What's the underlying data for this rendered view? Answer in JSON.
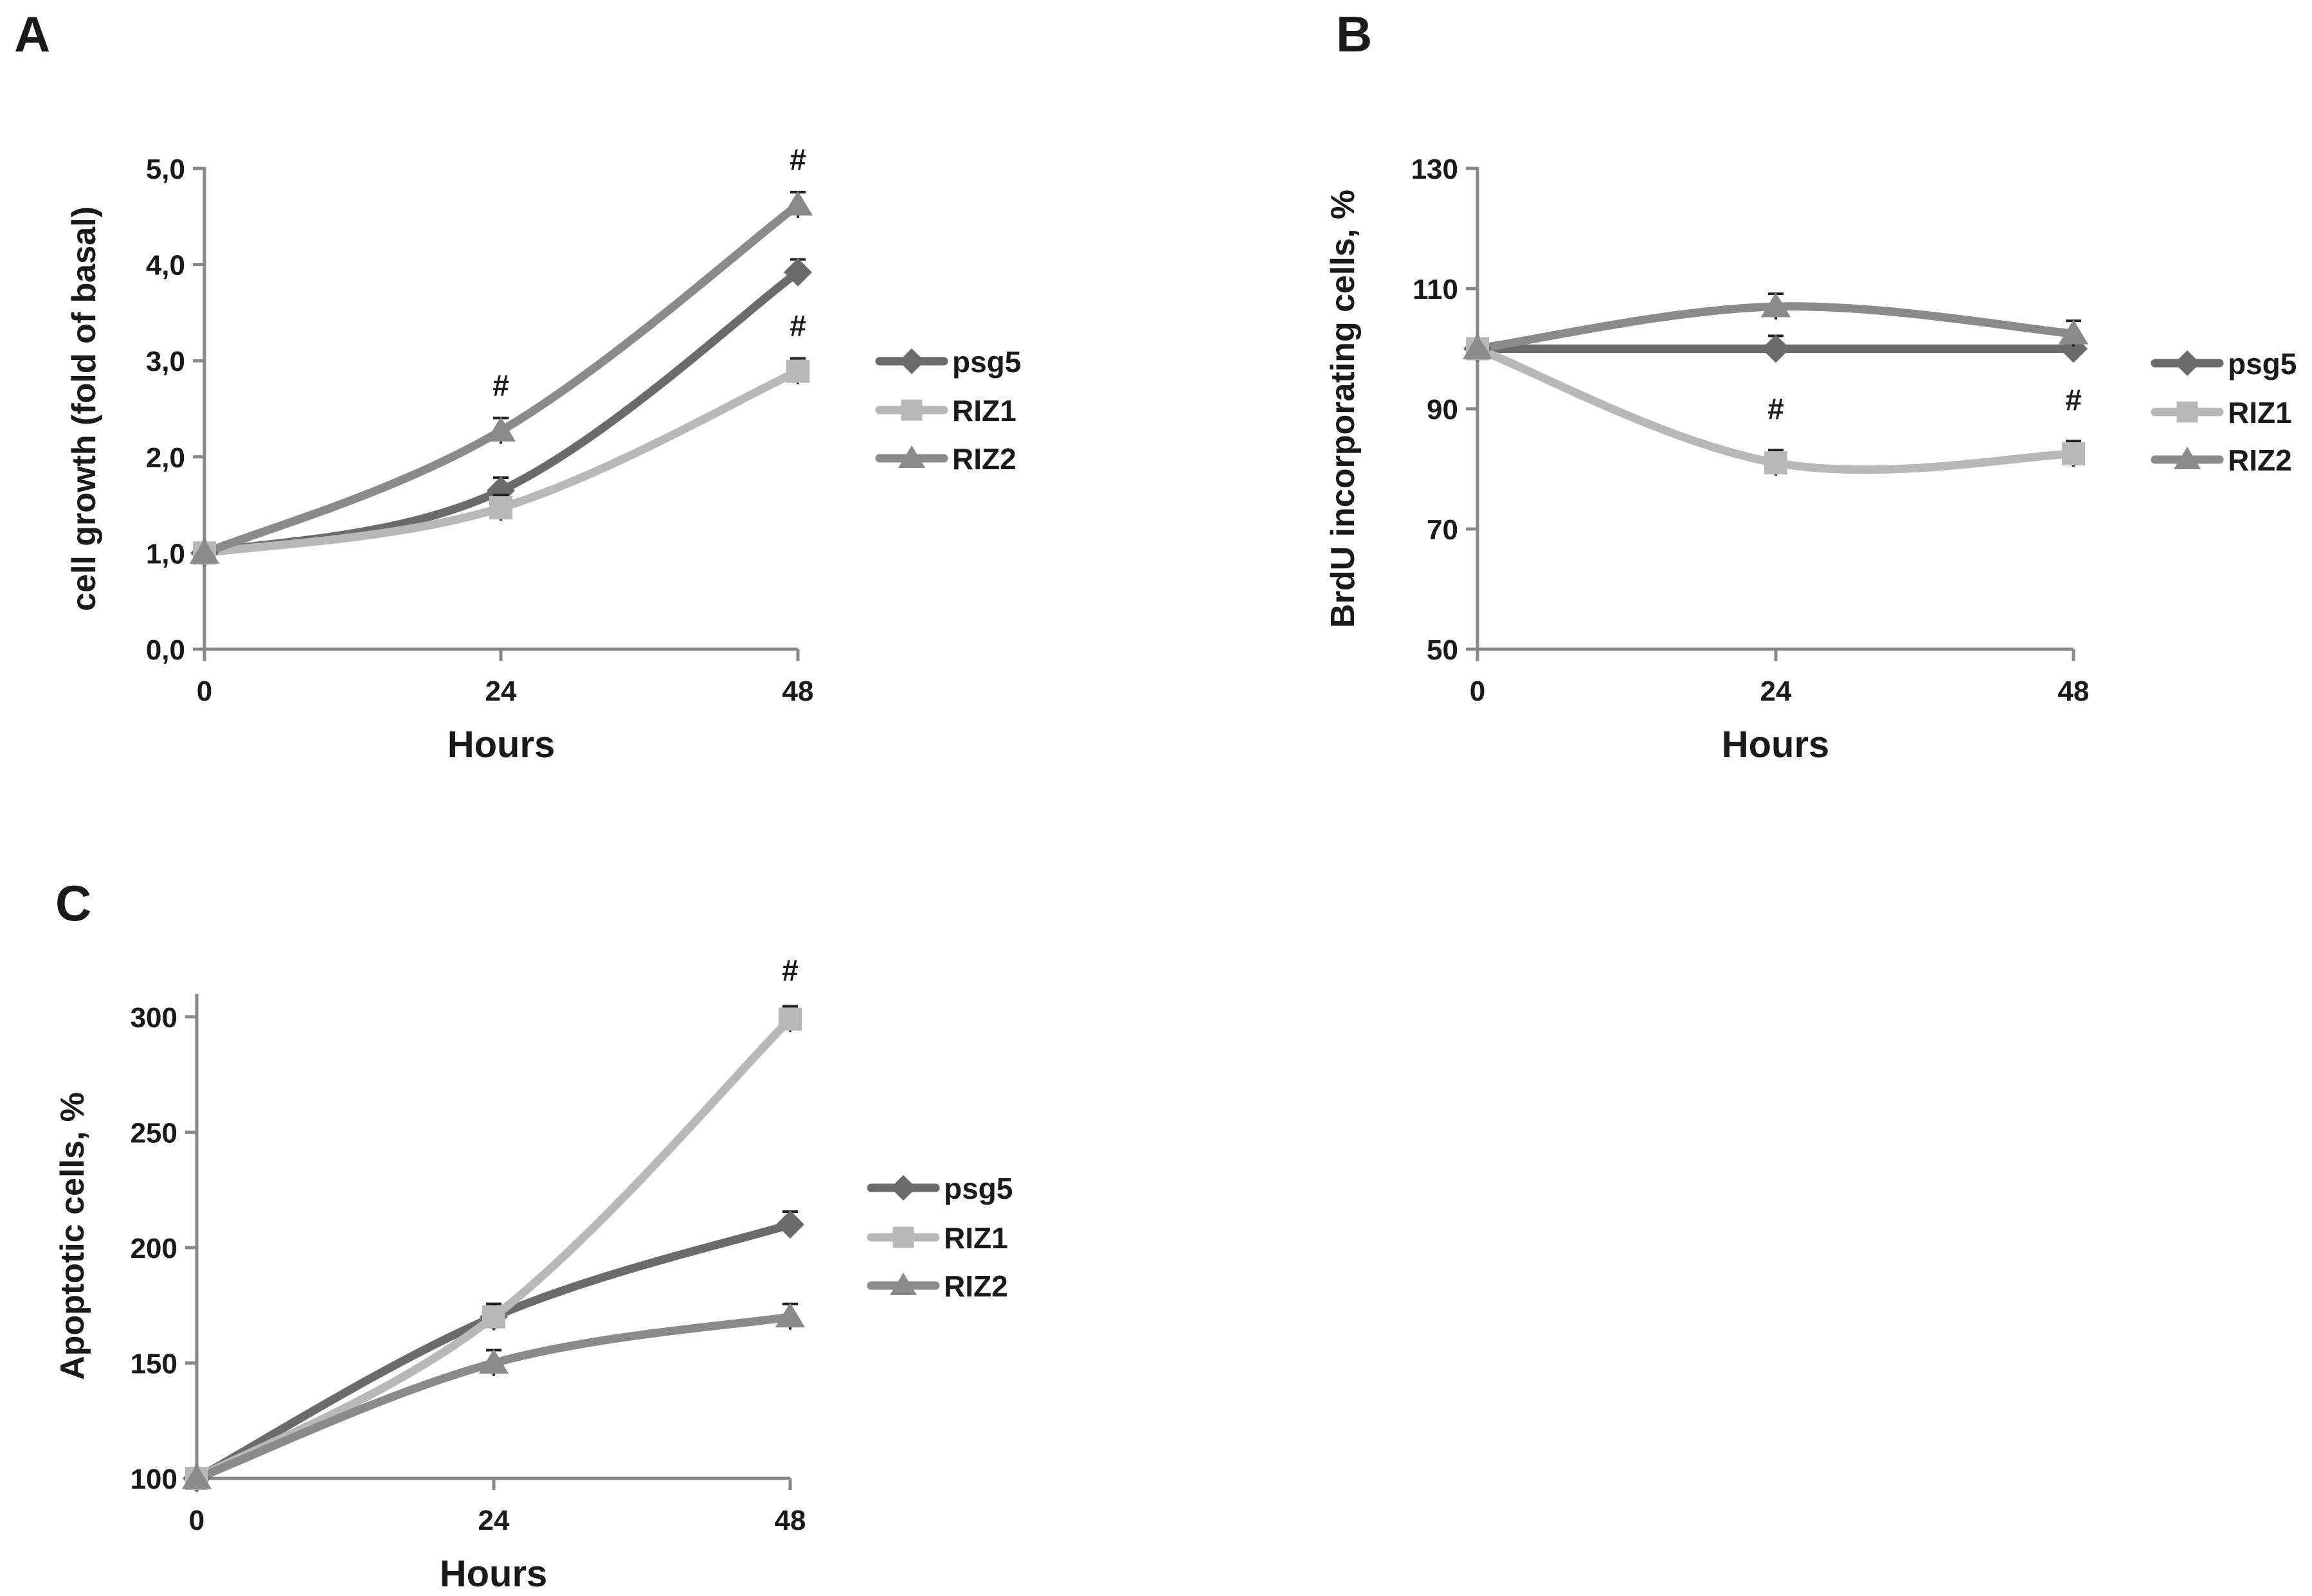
{
  "figure": {
    "panels": [
      "A",
      "B",
      "C"
    ]
  },
  "chart_data": [
    {
      "panel": "A",
      "type": "line",
      "xlabel": "Hours",
      "ylabel": "cell growth (fold of basal)",
      "categories": [
        "0",
        "24",
        "48"
      ],
      "ylim": [
        0,
        5
      ],
      "yticks": [
        0,
        1,
        2,
        3,
        4,
        5
      ],
      "ytick_labels": [
        "0,0",
        "1,0",
        "2,0",
        "3,0",
        "4,0",
        "5,0"
      ],
      "series": [
        {
          "name": "psg5",
          "color": "#6b6b6b",
          "marker": "diamond",
          "values": [
            1.0,
            1.65,
            3.92
          ],
          "errors": [
            0,
            0.08,
            0.08
          ]
        },
        {
          "name": "RIZ1",
          "color": "#b8b8b8",
          "marker": "square",
          "values": [
            1.0,
            1.47,
            2.89
          ],
          "errors": [
            0,
            0.05,
            0.06
          ]
        },
        {
          "name": "RIZ2",
          "color": "#8a8a8a",
          "marker": "triangle",
          "values": [
            1.0,
            2.27,
            4.62
          ],
          "errors": [
            0,
            0.09,
            0.1
          ]
        }
      ],
      "annotations": [
        {
          "text": "#",
          "x": "24",
          "y": 2.27
        },
        {
          "text": "#",
          "x": "48",
          "y": 4.62
        },
        {
          "text": "#",
          "x": "48",
          "y": 2.89
        }
      ],
      "legend": "right"
    },
    {
      "panel": "B",
      "type": "line",
      "xlabel": "Hours",
      "ylabel": "BrdU incorporating cells, %",
      "categories": [
        "0",
        "24",
        "48"
      ],
      "ylim": [
        50,
        130
      ],
      "yticks": [
        50,
        70,
        90,
        110,
        130
      ],
      "ytick_labels": [
        "50",
        "70",
        "90",
        "110",
        "130"
      ],
      "series": [
        {
          "name": "psg5",
          "color": "#6b6b6b",
          "marker": "diamond",
          "values": [
            100,
            100,
            100
          ],
          "errors": [
            0,
            0.5,
            0.5
          ]
        },
        {
          "name": "RIZ1",
          "color": "#b8b8b8",
          "marker": "square",
          "values": [
            100,
            81,
            82.5
          ],
          "errors": [
            0,
            1,
            1
          ]
        },
        {
          "name": "RIZ2",
          "color": "#8a8a8a",
          "marker": "triangle",
          "values": [
            100,
            107,
            102.5
          ],
          "errors": [
            0,
            1,
            1
          ]
        }
      ],
      "annotations": [
        {
          "text": "#",
          "x": "24",
          "y": 81
        },
        {
          "text": "#",
          "x": "48",
          "y": 82.5
        }
      ],
      "legend": "right"
    },
    {
      "panel": "C",
      "type": "line",
      "xlabel": "Hours",
      "ylabel": "Apoptotic cells, %",
      "categories": [
        "0",
        "24",
        "48"
      ],
      "ylim": [
        100,
        310
      ],
      "yticks": [
        100,
        150,
        200,
        250,
        300
      ],
      "ytick_labels": [
        "100",
        "150",
        "200",
        "250",
        "300"
      ],
      "series": [
        {
          "name": "psg5",
          "color": "#6b6b6b",
          "marker": "diamond",
          "values": [
            100,
            170,
            210
          ],
          "errors": [
            0,
            2,
            2
          ]
        },
        {
          "name": "RIZ1",
          "color": "#b8b8b8",
          "marker": "square",
          "values": [
            100,
            170,
            299
          ],
          "errors": [
            0,
            2,
            2
          ]
        },
        {
          "name": "RIZ2",
          "color": "#8a8a8a",
          "marker": "triangle",
          "values": [
            100,
            150,
            170
          ],
          "errors": [
            0,
            2,
            2
          ]
        }
      ],
      "annotations": [
        {
          "text": "#",
          "x": "48",
          "y": 299
        }
      ],
      "legend": "right"
    }
  ]
}
